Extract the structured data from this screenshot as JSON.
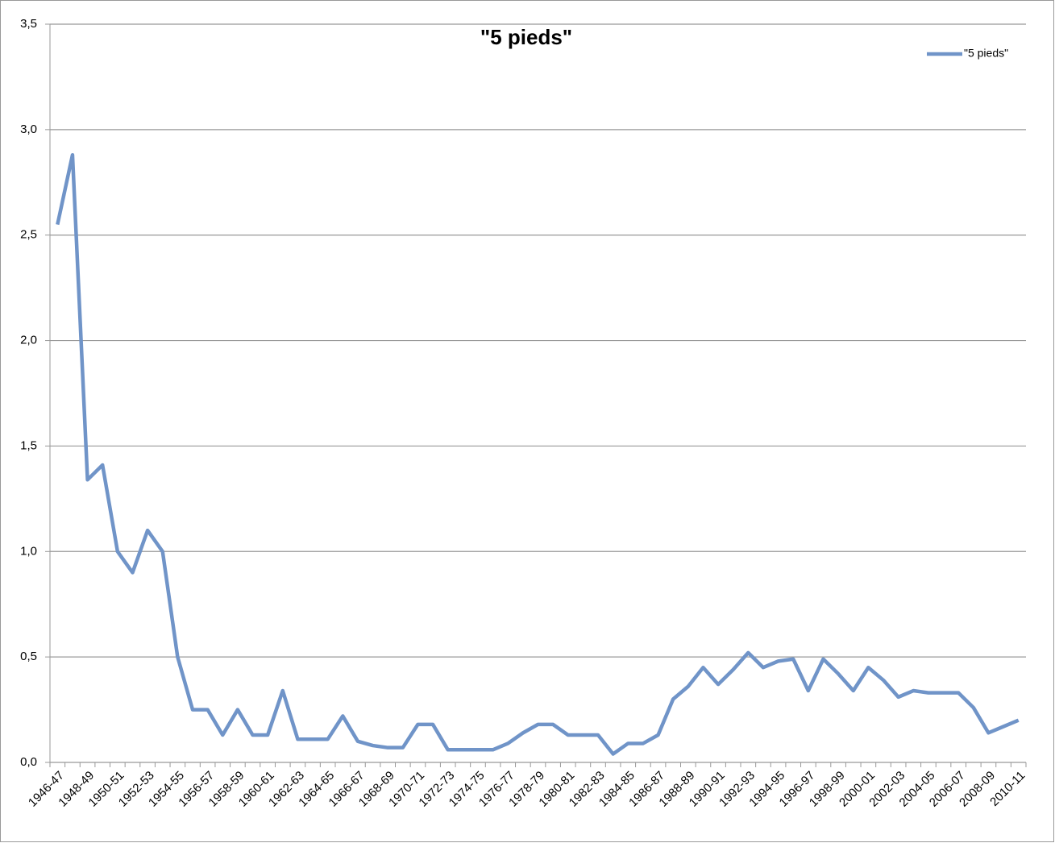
{
  "chart_data": {
    "type": "line",
    "title": "\"5 pieds\"",
    "categories": [
      "1946-47",
      null,
      "1948-49",
      null,
      "1950-51",
      null,
      "1952-53",
      null,
      "1954-55",
      null,
      "1956-57",
      null,
      "1958-59",
      null,
      "1960-61",
      null,
      "1962-63",
      null,
      "1964-65",
      null,
      "1966-67",
      null,
      "1968-69",
      null,
      "1970-71",
      null,
      "1972-73",
      null,
      "1974-75",
      null,
      "1976-77",
      null,
      "1978-79",
      null,
      "1980-81",
      null,
      "1982-83",
      null,
      "1984-85",
      null,
      "1986-87",
      null,
      "1988-89",
      null,
      "1990-91",
      null,
      "1992-93",
      null,
      "1994-95",
      null,
      "1996-97",
      null,
      "1998-99",
      null,
      "2000-01",
      null,
      "2002-03",
      null,
      "2004-05",
      null,
      "2006-07",
      null,
      "2008-09",
      null,
      "2010-11"
    ],
    "series": [
      {
        "name": "\"5 pieds\"",
        "color": "#7094c8",
        "values": [
          2.55,
          2.88,
          1.34,
          1.41,
          1.0,
          0.9,
          1.1,
          1.0,
          0.5,
          0.25,
          0.25,
          0.13,
          0.25,
          0.13,
          0.13,
          0.34,
          0.11,
          0.11,
          0.11,
          0.22,
          0.1,
          0.08,
          0.07,
          0.07,
          0.18,
          0.18,
          0.06,
          0.06,
          0.06,
          0.06,
          0.09,
          0.14,
          0.18,
          0.18,
          0.13,
          0.13,
          0.13,
          0.04,
          0.09,
          0.09,
          0.13,
          0.3,
          0.36,
          0.45,
          0.37,
          0.44,
          0.52,
          0.45,
          0.48,
          0.49,
          0.34,
          0.49,
          0.42,
          0.34,
          0.45,
          0.39,
          0.31,
          0.34,
          0.33,
          0.33,
          0.33,
          0.26,
          0.14,
          0.17,
          0.2
        ]
      }
    ],
    "ylim": [
      0,
      3.5
    ],
    "yticks": [
      {
        "value": 0,
        "label": "0,0"
      },
      {
        "value": 0.5,
        "label": "0,5"
      },
      {
        "value": 1,
        "label": "1,0"
      },
      {
        "value": 1.5,
        "label": "1,5"
      },
      {
        "value": 2,
        "label": "2,0"
      },
      {
        "value": 2.5,
        "label": "2,5"
      },
      {
        "value": 3,
        "label": "3,0"
      },
      {
        "value": 3.5,
        "label": "3,5"
      }
    ],
    "grid": true,
    "legend": "top-right"
  }
}
